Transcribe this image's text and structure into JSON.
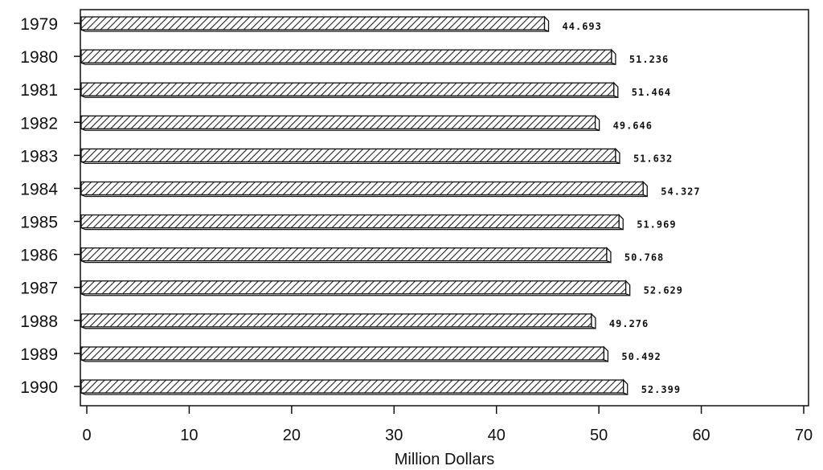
{
  "chart_data": {
    "type": "bar",
    "orientation": "horizontal",
    "categories": [
      "1979",
      "1980",
      "1981",
      "1982",
      "1983",
      "1984",
      "1985",
      "1986",
      "1987",
      "1988",
      "1989",
      "1990"
    ],
    "values": [
      44.693,
      51.236,
      51.464,
      49.646,
      51.632,
      54.327,
      51.969,
      50.768,
      52.629,
      49.276,
      50.492,
      52.399
    ],
    "value_labels": [
      "44.693",
      "51.236",
      "51.464",
      "49.646",
      "51.632",
      "54.327",
      "51.969",
      "50.768",
      "52.629",
      "49.276",
      "50.492",
      "52.399"
    ],
    "title": "",
    "xlabel": "Million Dollars",
    "ylabel": "",
    "xlim": [
      0,
      70
    ],
    "xticks": [
      "0",
      "10",
      "20",
      "30",
      "40",
      "50",
      "60",
      "70"
    ],
    "grid": false,
    "bar_style": "diagonal-hatch 3d",
    "colors": {
      "bar_stroke": "#111111",
      "hatch": "#222222",
      "bar_fill": "#ffffff"
    }
  }
}
